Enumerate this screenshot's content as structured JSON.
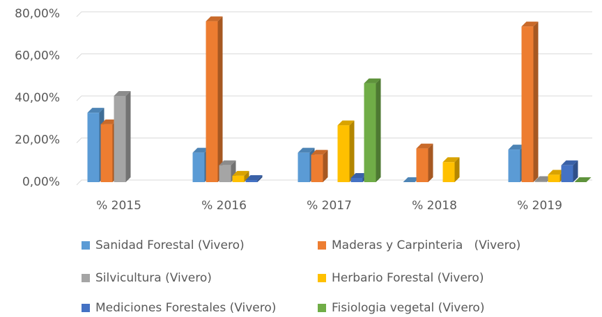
{
  "chart_data": {
    "type": "bar3d",
    "categories": [
      "% 2015",
      "% 2016",
      "% 2017",
      "% 2018",
      "% 2019"
    ],
    "series": [
      {
        "name": "Sanidad Forestal (Vivero)",
        "color": "#5b9bd5",
        "values": [
          33,
          14,
          14,
          0,
          15.5
        ]
      },
      {
        "name": "Maderas y Carpinteria   (Vivero)",
        "color": "#ed7d31",
        "values": [
          27.5,
          76.5,
          13,
          16,
          74
        ]
      },
      {
        "name": "Silvicultura (Vivero)",
        "color": "#a5a5a5",
        "values": [
          41,
          8,
          null,
          null,
          0.5
        ]
      },
      {
        "name": "Herbario Forestal (Vivero)",
        "color": "#ffc000",
        "values": [
          null,
          3,
          27,
          9.5,
          3.5
        ]
      },
      {
        "name": "Mediciones Forestales (Vivero)",
        "color": "#4472c4",
        "values": [
          null,
          1,
          2,
          null,
          8
        ]
      },
      {
        "name": "Fisiologia vegetal (Vivero)",
        "color": "#70ad47",
        "values": [
          null,
          null,
          47,
          null,
          0
        ]
      }
    ],
    "ylim": [
      0,
      80
    ],
    "yticks": [
      {
        "value": 0,
        "label": "0,00%"
      },
      {
        "value": 20,
        "label": "20,00%"
      },
      {
        "value": 40,
        "label": "40,00%"
      },
      {
        "value": 60,
        "label": "60,00%"
      },
      {
        "value": 80,
        "label": "80,00%"
      }
    ],
    "grid": true
  }
}
